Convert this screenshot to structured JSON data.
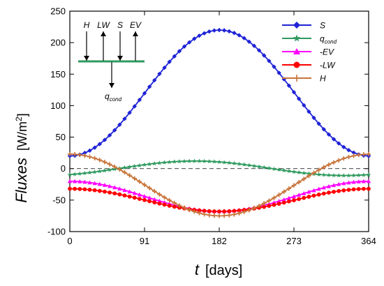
{
  "chart_data": {
    "type": "line",
    "x_label": "t",
    "x_unit": "[days]",
    "y_label": "Fluxes",
    "y_unit_main": "[W/m",
    "y_unit_sup": "2",
    "y_unit_end": "]",
    "x_ticks": [
      "0",
      "91",
      "182",
      "273",
      "364"
    ],
    "x_tick_values": [
      0,
      91,
      182,
      273,
      364
    ],
    "y_ticks": [
      "-100",
      "-50",
      "0",
      "50",
      "100",
      "150",
      "200",
      "250"
    ],
    "y_tick_values": [
      -100,
      -50,
      0,
      50,
      100,
      150,
      200,
      250
    ],
    "xlim": [
      0,
      364
    ],
    "ylim": [
      -100,
      250
    ],
    "zero_line": 0,
    "legend_position": "top-right",
    "series": [
      {
        "name": "S",
        "name_sub": "",
        "color": "#1f23d6",
        "marker": "diamond",
        "mean": 120,
        "amplitude": -100,
        "phase": 0
      },
      {
        "name": "q",
        "name_sub": "cond",
        "color": "#2e9a5e",
        "marker": "star",
        "mean": 0.5,
        "amplitude": -11.5,
        "phase": -30
      },
      {
        "name": "-EV",
        "name_sub": "",
        "color": "#ff00ff",
        "marker": "triangle",
        "mean": -44,
        "amplitude": 24,
        "phase": 0
      },
      {
        "name": "-LW",
        "name_sub": "",
        "color": "#ff0000",
        "marker": "circle",
        "mean": -50,
        "amplitude": 18,
        "phase": 0
      },
      {
        "name": "H",
        "name_sub": "",
        "color": "#c8743a",
        "marker": "plus",
        "mean": -26,
        "amplitude": 49,
        "phase": 0
      }
    ],
    "num_points": 61
  },
  "inset": {
    "labels": [
      "H",
      "LW",
      "S",
      "EV"
    ],
    "bottom_label": "q",
    "bottom_sub": "cond"
  }
}
